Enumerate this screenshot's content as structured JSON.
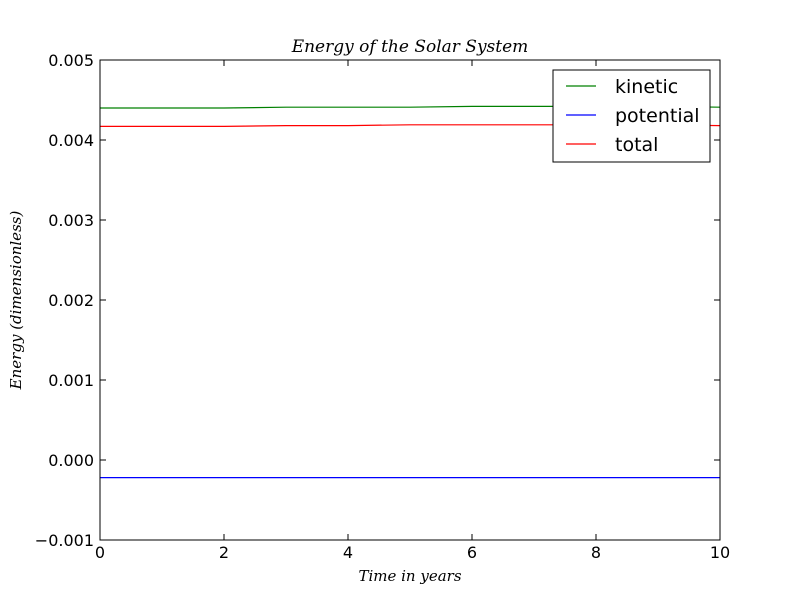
{
  "chart_data": {
    "type": "line",
    "title": "Energy of the Solar System",
    "xlabel": "Time in years",
    "ylabel": "Energy (dimensionless)",
    "xlim": [
      0,
      10
    ],
    "ylim": [
      -0.001,
      0.005
    ],
    "x_ticks": [
      0,
      2,
      4,
      6,
      8,
      10
    ],
    "x_tick_labels": [
      "0",
      "2",
      "4",
      "6",
      "8",
      "10"
    ],
    "y_ticks": [
      -0.001,
      0.0,
      0.001,
      0.002,
      0.003,
      0.004,
      0.005
    ],
    "y_tick_labels": [
      "−0.001",
      "0.000",
      "0.001",
      "0.002",
      "0.003",
      "0.004",
      "0.005"
    ],
    "grid": false,
    "legend_position": "top-right",
    "x": [
      0,
      1,
      2,
      3,
      4,
      5,
      6,
      7,
      8,
      9,
      10
    ],
    "series": [
      {
        "name": "kinetic",
        "color": "#008000",
        "values": [
          0.0044,
          0.0044,
          0.0044,
          0.00441,
          0.00441,
          0.00441,
          0.00442,
          0.00442,
          0.00442,
          0.00442,
          0.00441
        ]
      },
      {
        "name": "potential",
        "color": "#0000ff",
        "values": [
          -0.00022,
          -0.00022,
          -0.00022,
          -0.00022,
          -0.00022,
          -0.00022,
          -0.00022,
          -0.00022,
          -0.00022,
          -0.00022,
          -0.00022
        ]
      },
      {
        "name": "total",
        "color": "#ff0000",
        "values": [
          0.00417,
          0.00417,
          0.00417,
          0.00418,
          0.00418,
          0.00419,
          0.00419,
          0.00419,
          0.00419,
          0.00419,
          0.00418
        ]
      }
    ]
  }
}
